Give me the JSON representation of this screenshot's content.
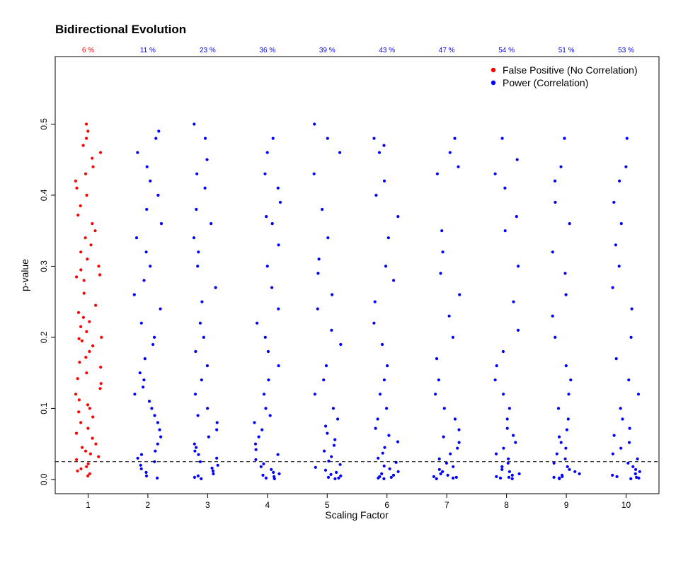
{
  "chart_data": {
    "type": "scatter",
    "title": "Bidirectional Evolution",
    "xlabel": "Scaling Factor",
    "ylabel": "p-value",
    "categories": [
      "1",
      "2",
      "3",
      "4",
      "5",
      "6",
      "7",
      "8",
      "9",
      "10"
    ],
    "xlim": [
      0.45,
      10.55
    ],
    "ylim": [
      -0.02,
      0.595
    ],
    "y_ticks": [
      "0.0",
      "0.1",
      "0.2",
      "0.3",
      "0.4",
      "0.5"
    ],
    "y_tick_values": [
      0,
      0.1,
      0.2,
      0.3,
      0.4,
      0.5
    ],
    "threshold_line": {
      "y": 0.025,
      "style": "dashed"
    },
    "grid": false,
    "legend_position": "top-right",
    "top_percentages": [
      "6 %",
      "11 %",
      "23 %",
      "36 %",
      "39 %",
      "43 %",
      "47 %",
      "54 %",
      "51 %",
      "53 %"
    ],
    "series": [
      {
        "name": "False Positive (No Correlation)",
        "color": "#ff0000",
        "categories": [
          "1"
        ],
        "values": [
          [
            0.005,
            0.008,
            0.012,
            0.015,
            0.018,
            0.022,
            0.028,
            0.032,
            0.036,
            0.04,
            0.045,
            0.05,
            0.058,
            0.065,
            0.072,
            0.08,
            0.088,
            0.095,
            0.1,
            0.105,
            0.112,
            0.12,
            0.128,
            0.135,
            0.142,
            0.15,
            0.158,
            0.165,
            0.172,
            0.18,
            0.188,
            0.195,
            0.198,
            0.2,
            0.208,
            0.215,
            0.222,
            0.228,
            0.235,
            0.245,
            0.262,
            0.28,
            0.285,
            0.288,
            0.295,
            0.3,
            0.31,
            0.32,
            0.33,
            0.34,
            0.35,
            0.36,
            0.372,
            0.385,
            0.4,
            0.41,
            0.42,
            0.43,
            0.44,
            0.452,
            0.46,
            0.47,
            0.48,
            0.49,
            0.5
          ]
        ]
      },
      {
        "name": "Power (Correlation)",
        "color": "#0000ff",
        "categories": [
          "2",
          "3",
          "4",
          "5",
          "6",
          "7",
          "8",
          "9",
          "10"
        ],
        "values": [
          [
            0.002,
            0.005,
            0.01,
            0.015,
            0.02,
            0.025,
            0.03,
            0.035,
            0.04,
            0.05,
            0.06,
            0.07,
            0.08,
            0.09,
            0.1,
            0.11,
            0.12,
            0.13,
            0.14,
            0.15,
            0.17,
            0.19,
            0.2,
            0.22,
            0.24,
            0.26,
            0.28,
            0.3,
            0.32,
            0.34,
            0.36,
            0.38,
            0.4,
            0.42,
            0.44,
            0.46,
            0.48,
            0.49
          ],
          [
            0.001,
            0.003,
            0.005,
            0.008,
            0.012,
            0.016,
            0.02,
            0.025,
            0.03,
            0.035,
            0.04,
            0.045,
            0.05,
            0.06,
            0.07,
            0.08,
            0.09,
            0.1,
            0.12,
            0.14,
            0.16,
            0.18,
            0.2,
            0.22,
            0.25,
            0.27,
            0.3,
            0.32,
            0.34,
            0.36,
            0.38,
            0.41,
            0.43,
            0.45,
            0.48,
            0.5
          ],
          [
            0.001,
            0.002,
            0.004,
            0.006,
            0.008,
            0.01,
            0.014,
            0.018,
            0.022,
            0.028,
            0.035,
            0.042,
            0.05,
            0.06,
            0.07,
            0.08,
            0.09,
            0.1,
            0.12,
            0.14,
            0.16,
            0.18,
            0.2,
            0.22,
            0.24,
            0.27,
            0.3,
            0.33,
            0.36,
            0.37,
            0.39,
            0.41,
            0.43,
            0.46,
            0.48
          ],
          [
            0.001,
            0.002,
            0.003,
            0.005,
            0.007,
            0.01,
            0.013,
            0.017,
            0.021,
            0.026,
            0.032,
            0.04,
            0.048,
            0.056,
            0.065,
            0.075,
            0.085,
            0.1,
            0.12,
            0.14,
            0.16,
            0.19,
            0.21,
            0.24,
            0.26,
            0.29,
            0.31,
            0.34,
            0.38,
            0.43,
            0.46,
            0.48,
            0.5
          ],
          [
            0.001,
            0.002,
            0.003,
            0.004,
            0.006,
            0.008,
            0.011,
            0.015,
            0.019,
            0.024,
            0.03,
            0.037,
            0.045,
            0.053,
            0.062,
            0.072,
            0.085,
            0.1,
            0.12,
            0.14,
            0.16,
            0.19,
            0.22,
            0.25,
            0.28,
            0.3,
            0.34,
            0.37,
            0.4,
            0.42,
            0.46,
            0.47,
            0.48
          ],
          [
            0.001,
            0.002,
            0.003,
            0.004,
            0.006,
            0.008,
            0.011,
            0.014,
            0.018,
            0.023,
            0.029,
            0.036,
            0.044,
            0.052,
            0.06,
            0.07,
            0.085,
            0.1,
            0.12,
            0.14,
            0.17,
            0.2,
            0.23,
            0.26,
            0.29,
            0.32,
            0.35,
            0.43,
            0.44,
            0.46,
            0.48
          ],
          [
            0.001,
            0.002,
            0.003,
            0.004,
            0.006,
            0.008,
            0.011,
            0.014,
            0.018,
            0.023,
            0.029,
            0.036,
            0.044,
            0.052,
            0.062,
            0.072,
            0.085,
            0.1,
            0.12,
            0.14,
            0.16,
            0.18,
            0.21,
            0.25,
            0.3,
            0.35,
            0.37,
            0.41,
            0.43,
            0.45,
            0.48
          ],
          [
            0.001,
            0.002,
            0.003,
            0.004,
            0.006,
            0.008,
            0.011,
            0.014,
            0.018,
            0.023,
            0.029,
            0.036,
            0.044,
            0.052,
            0.06,
            0.07,
            0.085,
            0.1,
            0.12,
            0.14,
            0.16,
            0.2,
            0.23,
            0.26,
            0.29,
            0.32,
            0.36,
            0.39,
            0.42,
            0.44,
            0.48
          ],
          [
            0.001,
            0.002,
            0.003,
            0.004,
            0.006,
            0.008,
            0.011,
            0.014,
            0.018,
            0.023,
            0.029,
            0.036,
            0.044,
            0.052,
            0.062,
            0.072,
            0.085,
            0.1,
            0.12,
            0.14,
            0.17,
            0.2,
            0.24,
            0.27,
            0.3,
            0.33,
            0.36,
            0.39,
            0.42,
            0.44,
            0.48
          ]
        ]
      }
    ]
  }
}
